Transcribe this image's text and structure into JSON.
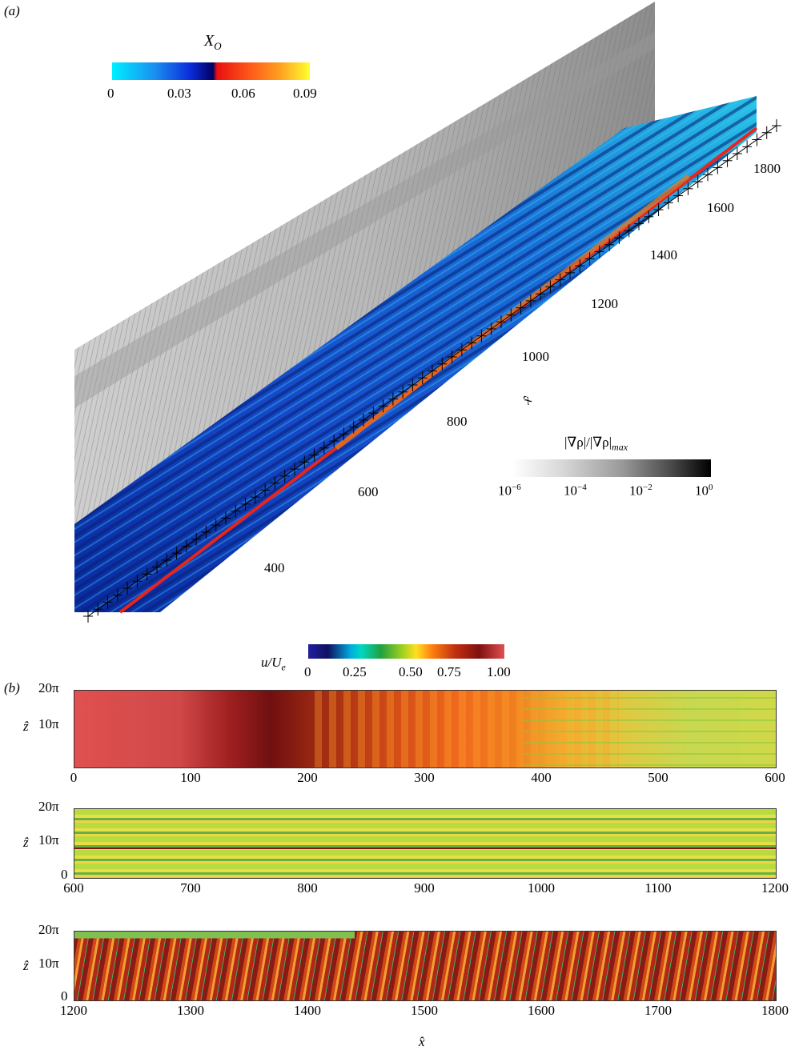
{
  "panel_a": {
    "label": "(a)",
    "xo_colorbar": {
      "title": "X",
      "title_sub": "O",
      "ticks": [
        "0",
        "0.03",
        "0.06",
        "0.09"
      ]
    },
    "grad_colorbar": {
      "title": "|∇ρ|/|∇ρ|",
      "title_sub": "max",
      "ticks": [
        {
          "base": "10",
          "exp": "−6"
        },
        {
          "base": "10",
          "exp": "−4"
        },
        {
          "base": "10",
          "exp": "−2"
        },
        {
          "base": "10",
          "exp": "0"
        }
      ]
    },
    "x_axis_label": "x̂",
    "x_ticks": [
      "400",
      "600",
      "800",
      "1000",
      "1200",
      "1400",
      "1600",
      "1800"
    ]
  },
  "panel_b": {
    "label": "(b)",
    "colorbar": {
      "title": "u/U",
      "title_sub": "e",
      "ticks": [
        "0",
        "0.25",
        "0.50",
        "0.75",
        "1.00"
      ]
    },
    "z_axis_label": "ẑ",
    "z_ticks": [
      "0",
      "10π",
      "20π"
    ],
    "x_axis_label": "x̂",
    "strips": [
      {
        "x_ticks": [
          "0",
          "100",
          "200",
          "300",
          "400",
          "500",
          "600"
        ]
      },
      {
        "x_ticks": [
          "600",
          "700",
          "800",
          "900",
          "1000",
          "1100",
          "1200"
        ]
      },
      {
        "x_ticks": [
          "1200",
          "1300",
          "1400",
          "1500",
          "1600",
          "1700",
          "1800"
        ]
      }
    ]
  }
}
